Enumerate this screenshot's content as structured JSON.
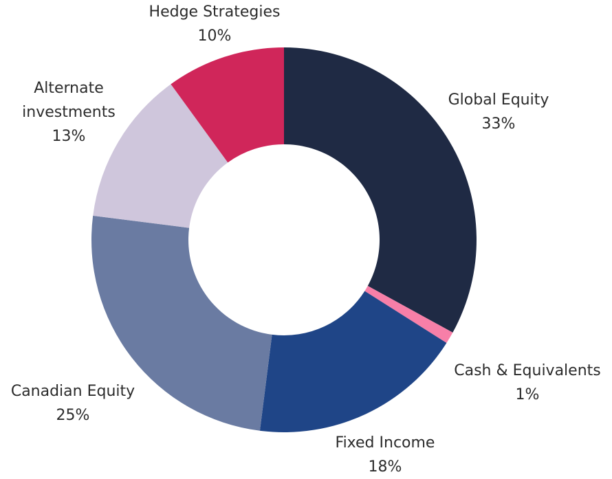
{
  "chart_data": {
    "type": "donut",
    "categories": [
      "Global Equity",
      "Cash & Equivalents",
      "Fixed Income",
      "Canadian Equity",
      "Alternate investments",
      "Hedge Strategies"
    ],
    "values": [
      33,
      1,
      18,
      25,
      13,
      10
    ],
    "value_labels": [
      "33%",
      "1%",
      "18%",
      "25%",
      "13%",
      "10%"
    ],
    "colors": [
      "#1f2a44",
      "#f77fa8",
      "#1f4587",
      "#6a7ba2",
      "#cfc6dc",
      "#d0265a"
    ]
  }
}
